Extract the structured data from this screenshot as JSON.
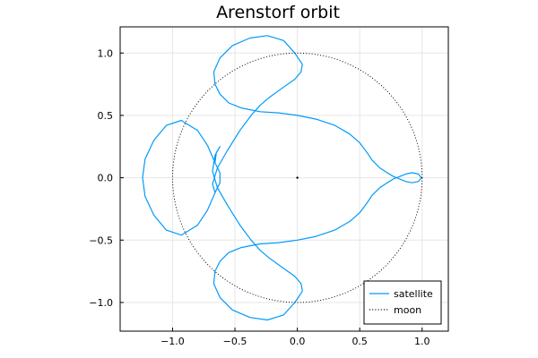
{
  "chart_data": {
    "type": "line",
    "title": "Arenstorf orbit",
    "xlabel": "",
    "ylabel": "",
    "xlim": [
      -1.42,
      1.21
    ],
    "ylim": [
      -1.23,
      1.21
    ],
    "xticks": [
      -1.0,
      -0.5,
      0.0,
      0.5,
      1.0
    ],
    "xtick_labels": [
      "−1.0",
      "−0.5",
      "0.0",
      "0.5",
      "1.0"
    ],
    "yticks": [
      -1.0,
      -0.5,
      0.0,
      0.5,
      1.0
    ],
    "ytick_labels": [
      "−1.0",
      "−0.5",
      "0.0",
      "0.5",
      "1.0"
    ],
    "grid": true,
    "legend_position": "bottom-right",
    "aspect": "equal",
    "series": [
      {
        "name": "satellite",
        "style": "solid",
        "color": "#009AFA",
        "points": [
          [
            0.994,
            0.0
          ],
          [
            0.97,
            0.03
          ],
          [
            0.92,
            0.04
          ],
          [
            0.87,
            0.03
          ],
          [
            0.82,
            0.01
          ],
          [
            0.77,
            -0.01
          ],
          [
            0.72,
            -0.04
          ],
          [
            0.66,
            -0.08
          ],
          [
            0.6,
            -0.14
          ],
          [
            0.56,
            -0.2
          ],
          [
            0.5,
            -0.28
          ],
          [
            0.42,
            -0.35
          ],
          [
            0.3,
            -0.42
          ],
          [
            0.15,
            -0.47
          ],
          [
            0.0,
            -0.5
          ],
          [
            -0.15,
            -0.52
          ],
          [
            -0.3,
            -0.53
          ],
          [
            -0.45,
            -0.56
          ],
          [
            -0.55,
            -0.6
          ],
          [
            -0.62,
            -0.67
          ],
          [
            -0.66,
            -0.75
          ],
          [
            -0.67,
            -0.85
          ],
          [
            -0.62,
            -0.96
          ],
          [
            -0.52,
            -1.06
          ],
          [
            -0.38,
            -1.12
          ],
          [
            -0.24,
            -1.14
          ],
          [
            -0.11,
            -1.1
          ],
          [
            -0.02,
            -1.0
          ],
          [
            0.04,
            -0.91
          ],
          [
            0.03,
            -0.85
          ],
          [
            -0.02,
            -0.79
          ],
          [
            -0.12,
            -0.72
          ],
          [
            -0.23,
            -0.64
          ],
          [
            -0.3,
            -0.58
          ],
          [
            -0.37,
            -0.5
          ],
          [
            -0.46,
            -0.38
          ],
          [
            -0.56,
            -0.22
          ],
          [
            -0.64,
            -0.08
          ],
          [
            -0.68,
            0.05
          ],
          [
            -0.66,
            0.18
          ],
          [
            -0.62,
            0.25
          ],
          [
            -0.65,
            0.2
          ],
          [
            -0.66,
            0.12
          ],
          [
            -0.62,
            0.04
          ],
          [
            -0.62,
            -0.04
          ],
          [
            -0.66,
            -0.12
          ],
          [
            -0.72,
            -0.26
          ],
          [
            -0.8,
            -0.38
          ],
          [
            -0.93,
            -0.46
          ],
          [
            -1.05,
            -0.42
          ],
          [
            -1.15,
            -0.3
          ],
          [
            -1.22,
            -0.15
          ],
          [
            -1.24,
            0.0
          ],
          [
            -1.22,
            0.15
          ],
          [
            -1.15,
            0.3
          ],
          [
            -1.05,
            0.42
          ],
          [
            -0.93,
            0.46
          ],
          [
            -0.8,
            0.38
          ],
          [
            -0.72,
            0.26
          ],
          [
            -0.66,
            0.12
          ],
          [
            -0.62,
            0.04
          ],
          [
            -0.62,
            -0.04
          ],
          [
            -0.66,
            -0.12
          ],
          [
            -0.68,
            -0.05
          ],
          [
            -0.64,
            0.08
          ],
          [
            -0.56,
            0.22
          ],
          [
            -0.46,
            0.38
          ],
          [
            -0.37,
            0.5
          ],
          [
            -0.3,
            0.58
          ],
          [
            -0.23,
            0.64
          ],
          [
            -0.12,
            0.72
          ],
          [
            -0.02,
            0.79
          ],
          [
            0.03,
            0.85
          ],
          [
            0.04,
            0.91
          ],
          [
            -0.02,
            1.0
          ],
          [
            -0.11,
            1.1
          ],
          [
            -0.24,
            1.14
          ],
          [
            -0.38,
            1.12
          ],
          [
            -0.52,
            1.06
          ],
          [
            -0.62,
            0.96
          ],
          [
            -0.67,
            0.85
          ],
          [
            -0.66,
            0.75
          ],
          [
            -0.62,
            0.67
          ],
          [
            -0.55,
            0.6
          ],
          [
            -0.45,
            0.56
          ],
          [
            -0.3,
            0.53
          ],
          [
            -0.15,
            0.52
          ],
          [
            0.0,
            0.5
          ],
          [
            0.15,
            0.47
          ],
          [
            0.3,
            0.42
          ],
          [
            0.42,
            0.35
          ],
          [
            0.5,
            0.28
          ],
          [
            0.56,
            0.2
          ],
          [
            0.6,
            0.14
          ],
          [
            0.66,
            0.08
          ],
          [
            0.72,
            0.04
          ],
          [
            0.77,
            0.01
          ],
          [
            0.82,
            -0.01
          ],
          [
            0.87,
            -0.03
          ],
          [
            0.92,
            -0.04
          ],
          [
            0.97,
            -0.03
          ],
          [
            0.994,
            0.0
          ]
        ]
      },
      {
        "name": "moon",
        "style": "dotted",
        "color": "#000000",
        "shape": "circle",
        "center": [
          0.0,
          0.0
        ],
        "radius": 1.0
      }
    ],
    "markers": [
      {
        "name": "center",
        "x": 0.0,
        "y": 0.0,
        "color": "#000000"
      }
    ]
  },
  "colors": {
    "grid": "#e6e6e6",
    "axis": "#000000",
    "background": "#ffffff"
  }
}
